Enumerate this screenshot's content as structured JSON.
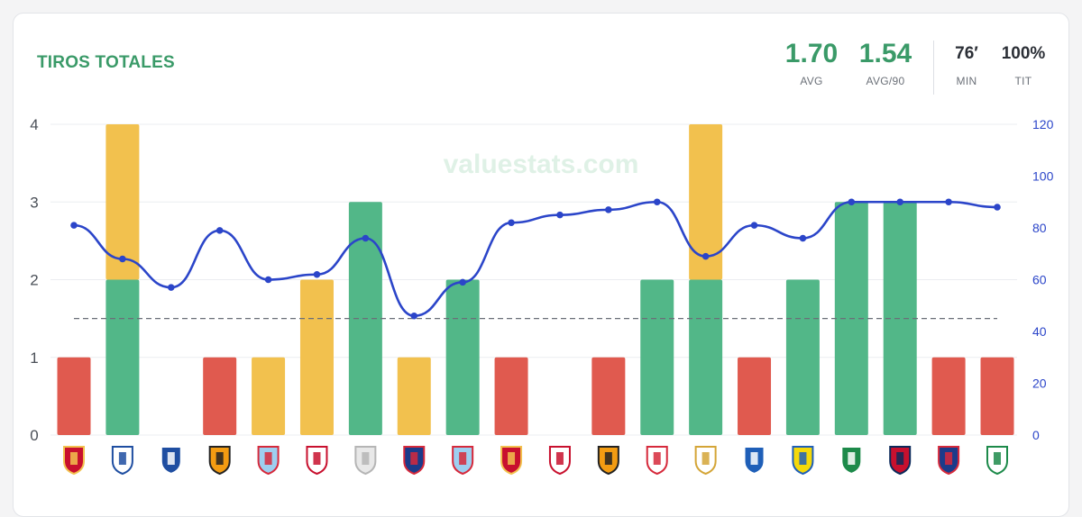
{
  "header": {
    "title": "TIROS TOTALES",
    "stats": [
      {
        "value": "1.70",
        "label": "AVG",
        "color": "#3a9a68"
      },
      {
        "value": "1.54",
        "label": "AVG/90",
        "color": "#3a9a68"
      },
      {
        "value": "76′",
        "label": "MIN",
        "color": "#2b2f36"
      },
      {
        "value": "100%",
        "label": "TIT",
        "color": "#2b2f36"
      }
    ]
  },
  "watermark": "valuestats.com",
  "colors": {
    "green": "#52b788",
    "yellow": "#f2c14e",
    "red": "#e05a4f",
    "line": "#2b45c9",
    "avg_line": "#6b6f78"
  },
  "chart_data": {
    "type": "bar",
    "left_axis": {
      "ticks": [
        "0",
        "1",
        "2",
        "3",
        "4"
      ],
      "ylim": [
        0,
        4
      ]
    },
    "right_axis": {
      "ticks": [
        "0",
        "20",
        "40",
        "60",
        "80",
        "100",
        "120"
      ],
      "ylim": [
        0,
        120
      ]
    },
    "average": 1.5,
    "opponents": [
      "mallorca-crest-icon",
      "oviedo-crest-icon",
      "alaves-crest-icon",
      "valencia-crest-icon",
      "celta-crest-icon",
      "sevilla-crest-icon",
      "generic-shield-icon",
      "atletico-crest-icon",
      "celta-crest-icon",
      "mallorca-crest-icon",
      "athletic-crest-icon",
      "valencia-crest-icon",
      "rayo-crest-icon",
      "real-madrid-crest-icon",
      "espanyol-crest-icon",
      "las-palmas-crest-icon",
      "betis-crest-icon",
      "osasuna-crest-icon",
      "atletico-crest-icon",
      "leganes-crest-icon"
    ],
    "series": [
      {
        "name": "",
        "values": [
          1,
          2,
          0,
          1,
          1,
          0,
          3,
          0,
          2,
          1,
          0,
          1,
          2,
          2,
          1,
          2,
          3,
          3,
          1,
          1
        ]
      },
      {
        "name": "",
        "values": [
          0,
          2,
          0,
          0,
          0,
          2,
          0,
          1,
          0,
          0,
          0,
          0,
          0,
          2,
          0,
          0,
          0,
          0,
          0,
          0
        ]
      }
    ],
    "bar_colors": [
      "red",
      "green",
      "none",
      "red",
      "yellow",
      "yellow",
      "green",
      "yellow",
      "green",
      "red",
      "none",
      "red",
      "green",
      "green",
      "red",
      "green",
      "green",
      "green",
      "red",
      "red"
    ],
    "minutes": [
      81,
      68,
      57,
      79,
      60,
      62,
      76,
      46,
      59,
      82,
      85,
      87,
      90,
      69,
      81,
      76,
      90,
      90,
      90,
      88
    ]
  }
}
